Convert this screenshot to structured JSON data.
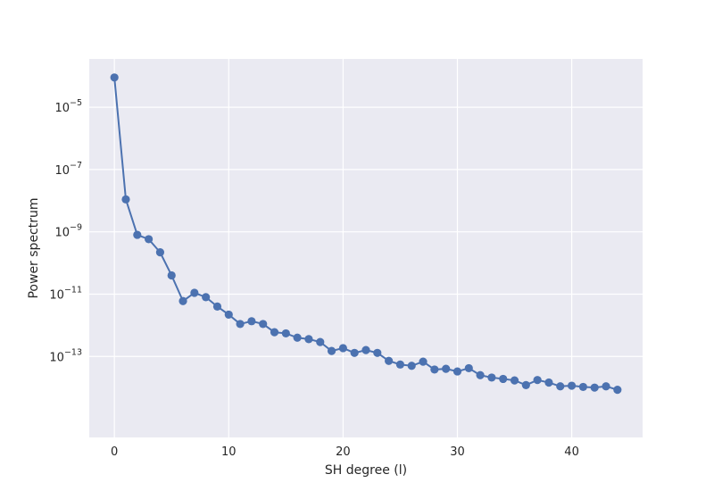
{
  "chart_data": {
    "type": "line",
    "xlabel": "SH degree (l)",
    "ylabel": "Power spectrum",
    "xlim": [
      -2.2,
      46.2
    ],
    "ylim_log10": [
      -15.6,
      -3.45
    ],
    "yscale": "log",
    "grid": true,
    "x_ticks": [
      0,
      10,
      20,
      30,
      40
    ],
    "y_ticks_exponent": [
      -5,
      -7,
      -9,
      -11,
      -13
    ],
    "y_tick_base": "10",
    "colors": {
      "plot_bg": "#eaeaf2",
      "line": "#4c72b0",
      "grid": "#ffffff",
      "text": "#262626"
    },
    "series": [
      {
        "marker": "circle",
        "x": [
          0,
          1,
          2,
          3,
          4,
          5,
          6,
          7,
          8,
          9,
          10,
          11,
          12,
          13,
          14,
          15,
          16,
          17,
          18,
          19,
          20,
          21,
          22,
          23,
          24,
          25,
          26,
          27,
          28,
          29,
          30,
          31,
          32,
          33,
          34,
          35,
          36,
          37,
          38,
          39,
          40,
          41,
          42,
          43,
          44
        ],
        "y": [
          9e-05,
          1.1e-08,
          8e-10,
          5.8e-10,
          2.2e-10,
          4e-11,
          6e-12,
          1.1e-11,
          8e-12,
          4e-12,
          2.2e-12,
          1.1e-12,
          1.35e-12,
          1.1e-12,
          6e-13,
          5.5e-13,
          4e-13,
          3.6e-13,
          2.9e-13,
          1.5e-13,
          1.85e-13,
          1.3e-13,
          1.6e-13,
          1.3e-13,
          7.2e-14,
          5.5e-14,
          5e-14,
          6.8e-14,
          3.8e-14,
          4e-14,
          3.3e-14,
          4.2e-14,
          2.5e-14,
          2.1e-14,
          1.9e-14,
          1.7e-14,
          1.2e-14,
          1.75e-14,
          1.45e-14,
          1.1e-14,
          1.15e-14,
          1.05e-14,
          1e-14,
          1.1e-14,
          8.5e-15
        ]
      }
    ]
  }
}
